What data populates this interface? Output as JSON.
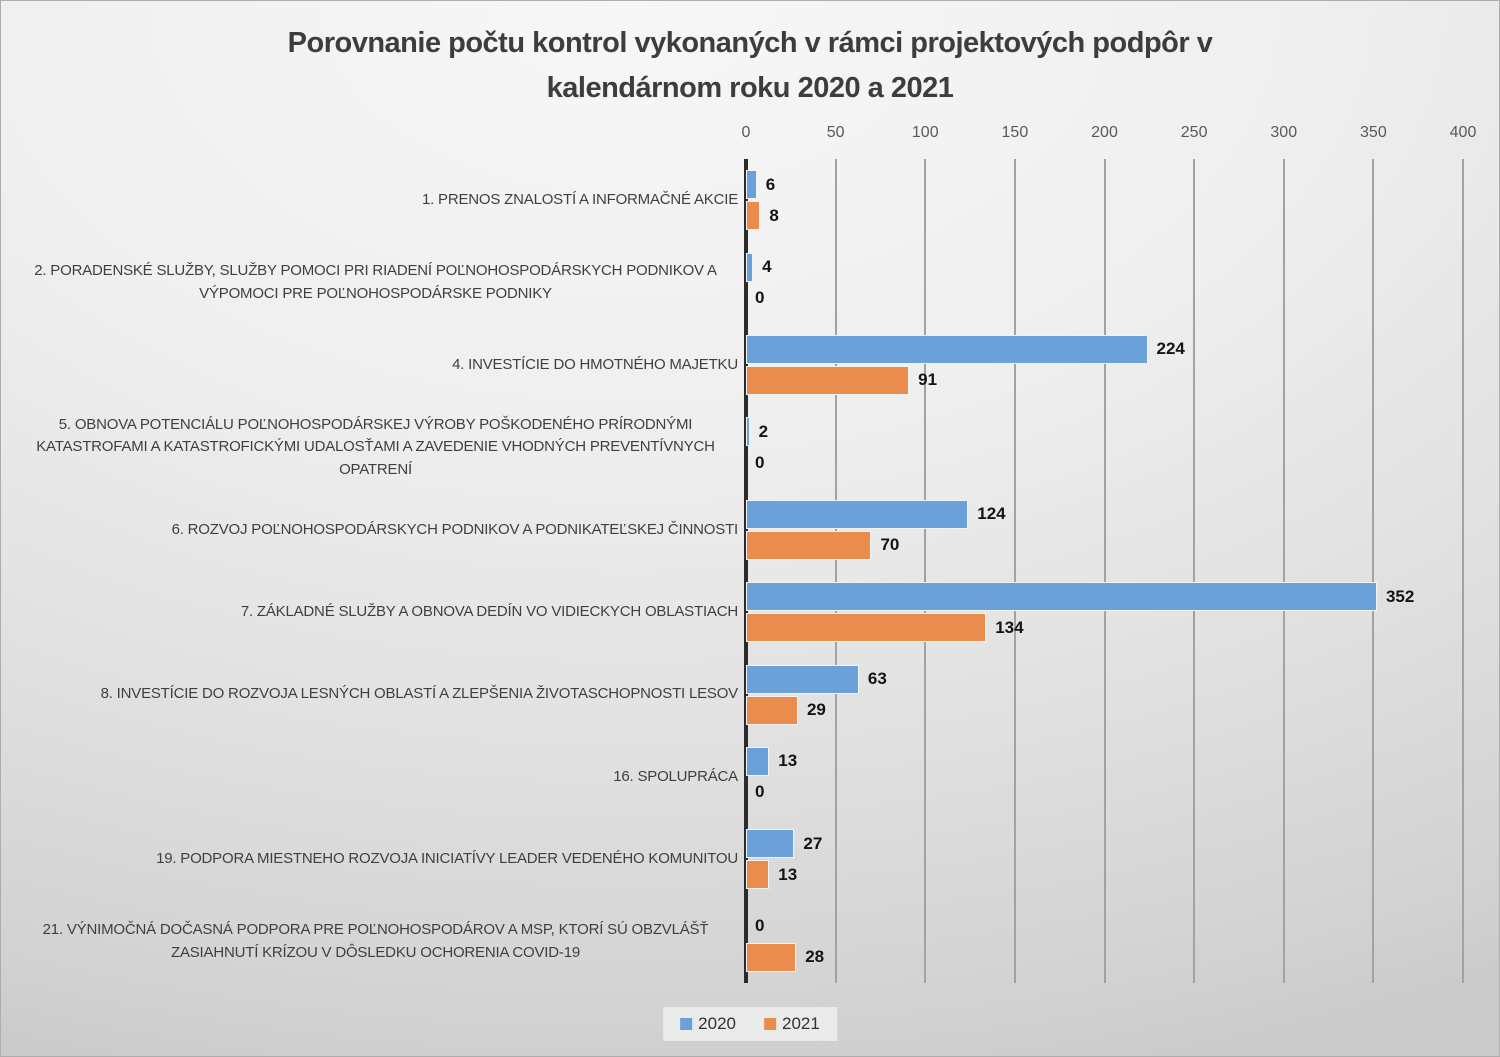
{
  "chart_data": {
    "type": "bar",
    "orientation": "horizontal",
    "title": "Porovnanie počtu kontrol vykonaných v rámci projektových podpôr v kalendárnom roku 2020 a 2021",
    "title_lines": [
      "Porovnanie počtu kontrol vykonaných v rámci projektových podpôr v",
      "kalendárnom roku 2020 a 2021"
    ],
    "categories": [
      "1. PRENOS ZNALOSTÍ A INFORMAČNÉ AKCIE",
      "2. PORADENSKÉ SLUŽBY, SLUŽBY POMOCI PRI RIADENÍ POĽNOHOSPODÁRSKYCH PODNIKOV A VÝPOMOCI PRE POĽNOHOSPODÁRSKE PODNIKY",
      "4. INVESTÍCIE DO HMOTNÉHO MAJETKU",
      "5. OBNOVA POTENCIÁLU POĽNOHOSPODÁRSKEJ VÝROBY POŠKODENÉHO PRÍRODNÝMI KATASTROFAMI A KATASTROFICKÝMI UDALOSŤAMI A ZAVEDENIE VHODNÝCH PREVENTÍVNYCH OPATRENÍ",
      "6. ROZVOJ POĽNOHOSPODÁRSKYCH PODNIKOV A PODNIKATEĽSKEJ ČINNOSTI",
      "7. ZÁKLADNÉ SLUŽBY A OBNOVA DEDÍN VO VIDIECKYCH OBLASTIACH",
      "8. INVESTÍCIE DO ROZVOJA LESNÝCH OBLASTÍ A ZLEPŠENIA ŽIVOTASCHOPNOSTI LESOV",
      "16. SPOLUPRÁCA",
      "19. PODPORA MIESTNEHO ROZVOJA INICIATÍVY LEADER VEDENÉHO KOMUNITOU",
      "21. VÝNIMOČNÁ DOČASNÁ PODPORA PRE POĽNOHOSPODÁROV A MSP, KTORÍ SÚ OBZVLÁŠŤ ZASIAHNUTÍ KRÍZOU V DÔSLEDKU OCHORENIA COVID-19"
    ],
    "series": [
      {
        "name": "2020",
        "color": "#6BA0D8",
        "values": [
          6,
          4,
          224,
          2,
          124,
          352,
          63,
          13,
          27,
          0
        ]
      },
      {
        "name": "2021",
        "color": "#E98C4D",
        "values": [
          8,
          0,
          91,
          0,
          70,
          134,
          29,
          0,
          13,
          28
        ]
      }
    ],
    "x_axis": {
      "position": "top",
      "min": 0,
      "max": 400,
      "ticks": [
        0,
        50,
        100,
        150,
        200,
        250,
        300,
        350,
        400
      ]
    },
    "grid": true,
    "legend_position": "bottom",
    "colors": {
      "axis_line": "#2b2b2b",
      "gridline": "#a2a2a2",
      "title_text": "#3d3d3d"
    }
  }
}
